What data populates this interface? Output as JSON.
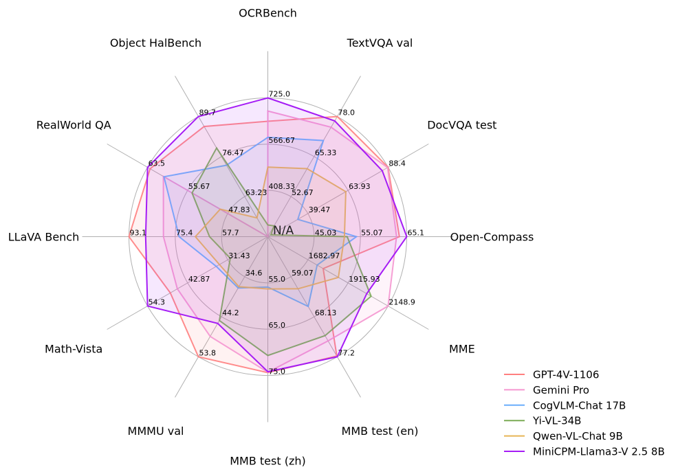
{
  "chart_data": {
    "type": "radar",
    "grid": true,
    "legend_position": "bottom-right",
    "axes": [
      {
        "name": "OCRBench",
        "range": [
          250,
          725
        ],
        "tick_labels": [
          "408.33",
          "566.67",
          "725.0"
        ]
      },
      {
        "name": "TextVQA val",
        "range": [
          40,
          78
        ],
        "tick_labels": [
          "52.67",
          "65.33",
          "78.0"
        ]
      },
      {
        "name": "DocVQA test",
        "range": [
          15,
          88.4
        ],
        "tick_labels": [
          "39.47",
          "63.93",
          "88.4"
        ]
      },
      {
        "name": "Open-Compass",
        "range": [
          35,
          65.1
        ],
        "tick_labels": [
          "45.03",
          "55.07",
          "65.1"
        ]
      },
      {
        "name": "MME",
        "range": [
          1450,
          2148.9
        ],
        "tick_labels": [
          "1682.97",
          "1915.93",
          "2148.9"
        ]
      },
      {
        "name": "MMB test (en)",
        "range": [
          50,
          77.2
        ],
        "tick_labels": [
          "59.07",
          "68.13",
          "77.2"
        ]
      },
      {
        "name": "MMB test (zh)",
        "range": [
          45,
          75
        ],
        "tick_labels": [
          "55.0",
          "65.0",
          "75.0"
        ]
      },
      {
        "name": "MMMU val",
        "range": [
          25,
          53.8
        ],
        "tick_labels": [
          "34.6",
          "44.2",
          "53.8"
        ]
      },
      {
        "name": "Math-Vista",
        "range": [
          20,
          54.3
        ],
        "tick_labels": [
          "31.43",
          "42.87",
          "54.3"
        ]
      },
      {
        "name": "LLaVA Bench",
        "range": [
          40,
          93.1
        ],
        "tick_labels": [
          "57.7",
          "75.4",
          "93.1"
        ]
      },
      {
        "name": "RealWorld QA",
        "range": [
          40,
          63.5
        ],
        "tick_labels": [
          "47.83",
          "55.67",
          "63.5"
        ]
      },
      {
        "name": "Object HalBench",
        "range": [
          50,
          89.7
        ],
        "tick_labels": [
          "63.23",
          "76.47",
          "89.7"
        ]
      }
    ],
    "annotation": "N/A",
    "series": [
      {
        "name": "GPT-4V-1106",
        "color": "#ff7f7f",
        "values": [
          645,
          78.0,
          88.4,
          63.5,
          1771.5,
          77.0,
          74.4,
          53.8,
          47.8,
          93.1,
          63.0,
          86.4
        ]
      },
      {
        "name": "Gemini Pro",
        "color": "#f596d0",
        "values": [
          680,
          74.6,
          88.1,
          62.9,
          2148.9,
          73.6,
          74.3,
          48.9,
          45.8,
          79.9,
          60.4,
          50
        ]
      },
      {
        "name": "CogVLM-Chat 17B",
        "color": "#6aaefc",
        "values": [
          590,
          70.4,
          33.3,
          54.2,
          1736.6,
          65.8,
          55.9,
          37.3,
          34.7,
          73.9,
          60.3,
          73.6
        ]
      },
      {
        "name": "Yi-VL-34B",
        "color": "#7aab55",
        "values": [
          290,
          43.4,
          16.9,
          52.2,
          2050.2,
          72.4,
          70.7,
          45.1,
          30.7,
          62.3,
          54.8,
          79.3
        ]
      },
      {
        "name": "Qwen-VL-Chat 9B",
        "color": "#e6b455",
        "values": [
          488,
          61.5,
          62.6,
          51.6,
          1860.0,
          61.8,
          56.3,
          37.0,
          33.8,
          67.7,
          49.3,
          56.2
        ]
      },
      {
        "name": "MiniCPM-Llama3-V 2.5 8B",
        "color": "#a51cf5",
        "values": [
          725,
          76.6,
          84.8,
          65.1,
          2024.6,
          77.2,
          74.2,
          45.8,
          54.3,
          86.7,
          63.5,
          89.7
        ]
      }
    ]
  }
}
